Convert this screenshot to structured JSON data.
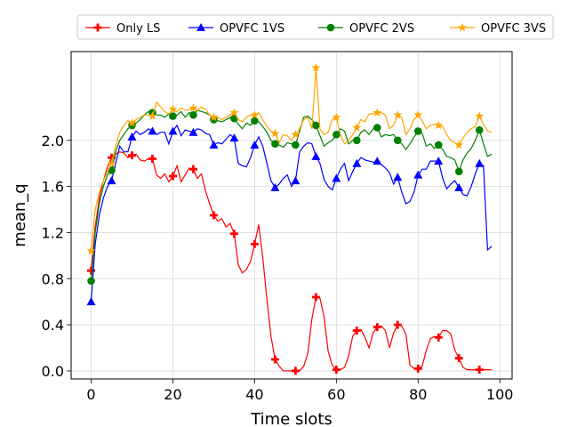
{
  "chart_data": {
    "type": "line",
    "title": "",
    "xlabel": "Time slots",
    "ylabel": "mean_q",
    "xlim": [
      -4.9,
      103
    ],
    "ylim": [
      -0.07,
      2.77
    ],
    "xticks": [
      0,
      20,
      40,
      60,
      80,
      100
    ],
    "yticks": [
      0.0,
      0.4,
      0.8,
      1.2,
      1.6,
      2.0
    ],
    "ytick_labels": [
      "0.0",
      "0.4",
      "0.8",
      "1.2",
      "1.6",
      "2.0"
    ],
    "grid": true,
    "legend_placement": "top",
    "marker_every": 5,
    "series": [
      {
        "name": "Only LS",
        "color": "#ff0000",
        "marker": "plus",
        "values": [
          0.87,
          1.25,
          1.5,
          1.65,
          1.77,
          1.85,
          1.88,
          1.9,
          1.89,
          1.85,
          1.87,
          1.88,
          1.83,
          1.82,
          1.84,
          1.84,
          1.7,
          1.67,
          1.71,
          1.64,
          1.69,
          1.78,
          1.64,
          1.7,
          1.76,
          1.75,
          1.67,
          1.71,
          1.56,
          1.45,
          1.35,
          1.3,
          1.32,
          1.25,
          1.28,
          1.19,
          0.92,
          0.85,
          0.88,
          0.95,
          1.1,
          1.27,
          0.98,
          0.62,
          0.3,
          0.1,
          0.04,
          0.0,
          0.0,
          0.0,
          0.0,
          0.0,
          0.04,
          0.15,
          0.45,
          0.64,
          0.63,
          0.47,
          0.17,
          0.05,
          0.01,
          0.01,
          0.03,
          0.13,
          0.3,
          0.35,
          0.36,
          0.29,
          0.2,
          0.33,
          0.38,
          0.39,
          0.35,
          0.2,
          0.33,
          0.4,
          0.39,
          0.32,
          0.05,
          0.02,
          0.02,
          0.04,
          0.18,
          0.28,
          0.3,
          0.29,
          0.35,
          0.35,
          0.32,
          0.18,
          0.11,
          0.03,
          0.01,
          0.01,
          0.01,
          0.01,
          0.01,
          0.01,
          0.01
        ]
      },
      {
        "name": "OPVFC 1VS",
        "color": "#0000ff",
        "marker": "triangle",
        "values": [
          0.6,
          1.1,
          1.35,
          1.5,
          1.6,
          1.65,
          1.8,
          1.95,
          1.9,
          1.9,
          2.03,
          2.08,
          2.05,
          2.07,
          2.1,
          2.08,
          2.05,
          2.07,
          2.07,
          1.97,
          2.08,
          2.13,
          2.04,
          2.09,
          2.08,
          2.07,
          2.1,
          2.09,
          2.06,
          2.05,
          1.96,
          1.98,
          1.97,
          2.01,
          2.05,
          2.02,
          1.8,
          1.78,
          1.77,
          1.85,
          1.96,
          2.03,
          1.95,
          1.8,
          1.65,
          1.59,
          1.62,
          1.67,
          1.7,
          1.6,
          1.65,
          1.9,
          1.95,
          1.98,
          1.97,
          1.86,
          1.8,
          1.66,
          1.6,
          1.57,
          1.67,
          1.75,
          1.8,
          1.65,
          1.73,
          1.8,
          1.85,
          1.83,
          1.82,
          1.81,
          1.82,
          1.79,
          1.76,
          1.72,
          1.62,
          1.68,
          1.55,
          1.45,
          1.47,
          1.55,
          1.7,
          1.75,
          1.75,
          1.82,
          1.82,
          1.82,
          1.67,
          1.58,
          1.62,
          1.65,
          1.59,
          1.53,
          1.52,
          1.6,
          1.71,
          1.8,
          1.78,
          1.05,
          1.08
        ]
      },
      {
        "name": "OPVFC 2VS",
        "color": "#008000",
        "marker": "circle",
        "values": [
          0.78,
          1.2,
          1.45,
          1.6,
          1.7,
          1.74,
          1.9,
          2.0,
          2.05,
          2.1,
          2.13,
          2.15,
          2.18,
          2.22,
          2.25,
          2.24,
          2.22,
          2.22,
          2.2,
          2.23,
          2.21,
          2.22,
          2.25,
          2.2,
          2.24,
          2.22,
          2.26,
          2.25,
          2.24,
          2.22,
          2.18,
          2.17,
          2.16,
          2.18,
          2.2,
          2.19,
          2.14,
          2.1,
          2.15,
          2.13,
          2.17,
          2.16,
          2.12,
          2.07,
          2.0,
          1.97,
          1.96,
          1.94,
          1.98,
          1.97,
          1.96,
          2.08,
          2.2,
          2.21,
          2.18,
          2.13,
          2.04,
          1.95,
          1.98,
          2.0,
          2.05,
          2.1,
          2.08,
          1.97,
          2.0,
          2.0,
          2.07,
          2.09,
          2.05,
          2.1,
          2.11,
          2.03,
          2.05,
          2.04,
          2.05,
          2.0,
          1.97,
          1.92,
          1.97,
          2.03,
          2.08,
          2.06,
          1.95,
          1.97,
          1.93,
          1.96,
          1.92,
          1.86,
          1.85,
          1.83,
          1.73,
          1.83,
          1.89,
          1.93,
          2.0,
          2.09,
          1.97,
          1.86,
          1.88
        ]
      },
      {
        "name": "OPVFC 3VS",
        "color": "#ffa500",
        "marker": "star",
        "values": [
          1.04,
          1.4,
          1.55,
          1.65,
          1.73,
          1.8,
          1.95,
          2.07,
          2.13,
          2.17,
          2.15,
          2.18,
          2.2,
          2.22,
          2.22,
          2.21,
          2.33,
          2.29,
          2.25,
          2.23,
          2.27,
          2.25,
          2.28,
          2.26,
          2.27,
          2.28,
          2.26,
          2.29,
          2.27,
          2.22,
          2.2,
          2.2,
          2.18,
          2.2,
          2.22,
          2.24,
          2.18,
          2.16,
          2.2,
          2.22,
          2.22,
          2.24,
          2.18,
          2.12,
          2.08,
          2.06,
          1.98,
          2.05,
          2.04,
          2.0,
          2.05,
          2.1,
          2.18,
          2.2,
          2.1,
          2.63,
          2.1,
          2.05,
          2.07,
          2.18,
          2.2,
          2.05,
          1.97,
          2.0,
          2.05,
          2.11,
          2.18,
          2.16,
          2.23,
          2.23,
          2.24,
          2.24,
          2.22,
          2.1,
          2.13,
          2.22,
          2.2,
          2.05,
          2.1,
          2.18,
          2.22,
          2.17,
          2.1,
          2.13,
          2.14,
          2.13,
          2.12,
          2.05,
          2.0,
          1.98,
          1.96,
          2.02,
          2.07,
          2.1,
          2.12,
          2.21,
          2.14,
          2.08,
          2.07
        ]
      }
    ]
  }
}
